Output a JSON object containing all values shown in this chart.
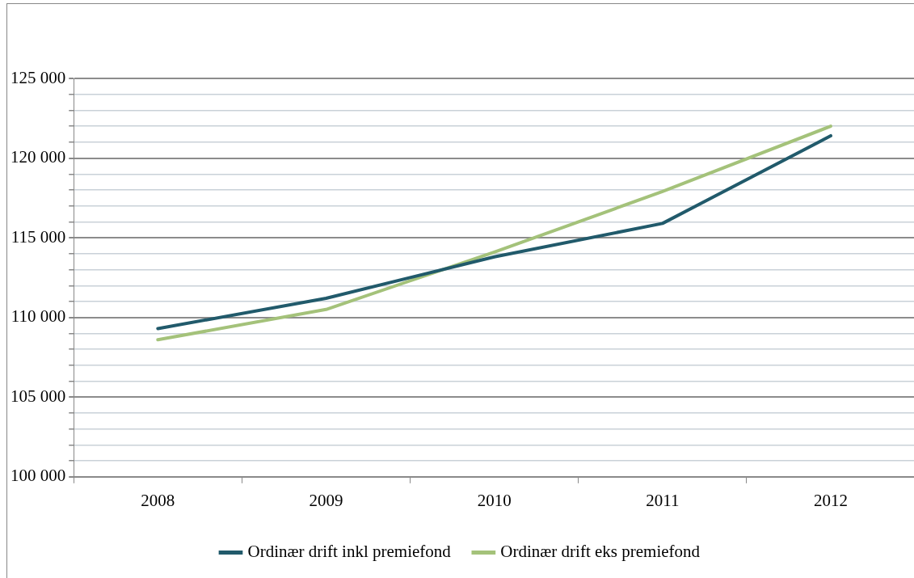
{
  "chart_data": {
    "type": "line",
    "categories": [
      "2008",
      "2009",
      "2010",
      "2011",
      "2012"
    ],
    "series": [
      {
        "name": "Ordinær drift inkl premiefond",
        "color": "#215a6b",
        "values": [
          109300,
          111200,
          113800,
          115900,
          121400
        ]
      },
      {
        "name": "Ordinær drift eks premiefond",
        "color": "#a4c27a",
        "values": [
          108600,
          110500,
          114100,
          117900,
          122000
        ]
      }
    ],
    "ylim": [
      100000,
      125000
    ],
    "yticks": [
      {
        "value": 100000,
        "label": "100 000"
      },
      {
        "value": 101000,
        "label": null
      },
      {
        "value": 102000,
        "label": null
      },
      {
        "value": 103000,
        "label": null
      },
      {
        "value": 104000,
        "label": null
      },
      {
        "value": 105000,
        "label": "105 000"
      },
      {
        "value": 106000,
        "label": null
      },
      {
        "value": 107000,
        "label": null
      },
      {
        "value": 108000,
        "label": null
      },
      {
        "value": 109000,
        "label": null
      },
      {
        "value": 110000,
        "label": "110 000"
      },
      {
        "value": 111000,
        "label": null
      },
      {
        "value": 112000,
        "label": null
      },
      {
        "value": 113000,
        "label": null
      },
      {
        "value": 114000,
        "label": null
      },
      {
        "value": 115000,
        "label": "115 000"
      },
      {
        "value": 116000,
        "label": null
      },
      {
        "value": 117000,
        "label": null
      },
      {
        "value": 118000,
        "label": null
      },
      {
        "value": 119000,
        "label": null
      },
      {
        "value": 120000,
        "label": "120 000"
      },
      {
        "value": 121000,
        "label": null
      },
      {
        "value": 122000,
        "label": null
      },
      {
        "value": 123000,
        "label": null
      },
      {
        "value": 124000,
        "label": null
      },
      {
        "value": 125000,
        "label": "125 000"
      }
    ],
    "grid": "y",
    "legend": "bottom",
    "marker": "none",
    "line_style": "solid"
  }
}
